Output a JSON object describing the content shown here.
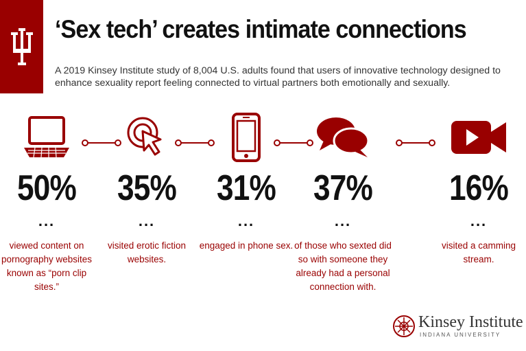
{
  "header": {
    "title": "‘Sex tech’ creates intimate connections",
    "subtitle": "A 2019 Kinsey Institute study of 8,004 U.S. adults found that users of innovative technology designed to enhance sexuality report feeling connected to virtual partners both emotionally and sexually."
  },
  "colors": {
    "accent": "#990000",
    "text": "#111111"
  },
  "stats": [
    {
      "icon": "laptop-icon",
      "percent": "50%",
      "dots": "...",
      "text": "viewed content on pornography websites known as “porn clip sites.”"
    },
    {
      "icon": "cursor-click-icon",
      "percent": "35%",
      "dots": "...",
      "text": "visited erotic fiction websites."
    },
    {
      "icon": "phone-icon",
      "percent": "31%",
      "dots": "...",
      "text": "engaged in phone sex."
    },
    {
      "icon": "chat-bubbles-icon",
      "percent": "37%",
      "dots": "...",
      "text": "of those who sexted did so with someone they already had a personal connection with."
    },
    {
      "icon": "video-camera-icon",
      "percent": "16%",
      "dots": "...",
      "text": "visited a camming stream."
    }
  ],
  "logo": {
    "name": "Kinsey Institute",
    "sub": "INDIANA UNIVERSITY"
  }
}
